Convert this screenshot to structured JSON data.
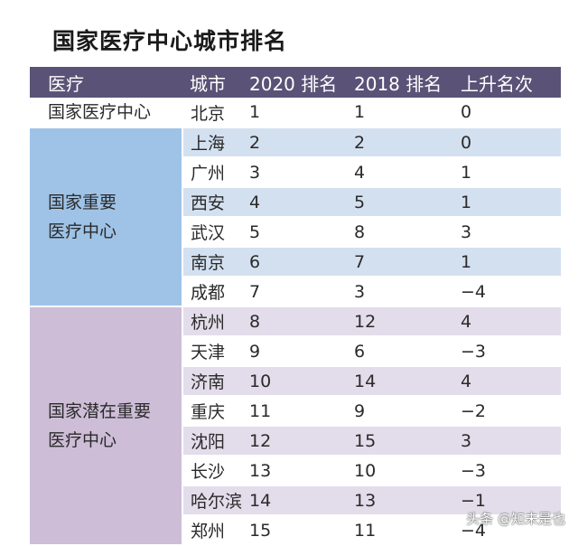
{
  "title": "国家医疗中心城市排名",
  "headers": [
    "医疗",
    "城市",
    "2020 排名",
    "2018 排名",
    "上升名次"
  ],
  "groups": [
    {
      "label_line1": "国家医疗中心",
      "label_line2": ""
    },
    {
      "label_line1": "国家重要",
      "label_line2": "医疗中心"
    },
    {
      "label_line1": "国家潜在重要",
      "label_line2": "医疗中心"
    }
  ],
  "rows": [
    {
      "city": "北京",
      "r2020": "1",
      "r2018": "1",
      "change": "0"
    },
    {
      "city": "上海",
      "r2020": "2",
      "r2018": "2",
      "change": "0"
    },
    {
      "city": "广州",
      "r2020": "3",
      "r2018": "4",
      "change": "1"
    },
    {
      "city": "西安",
      "r2020": "4",
      "r2018": "5",
      "change": "1"
    },
    {
      "city": "武汉",
      "r2020": "5",
      "r2018": "8",
      "change": "3"
    },
    {
      "city": "南京",
      "r2020": "6",
      "r2018": "7",
      "change": "1"
    },
    {
      "city": "成都",
      "r2020": "7",
      "r2018": "3",
      "change": "−4"
    },
    {
      "city": "杭州",
      "r2020": "8",
      "r2018": "12",
      "change": "4"
    },
    {
      "city": "天津",
      "r2020": "9",
      "r2018": "6",
      "change": "−3"
    },
    {
      "city": "济南",
      "r2020": "10",
      "r2018": "14",
      "change": "4"
    },
    {
      "city": "重庆",
      "r2020": "11",
      "r2018": "9",
      "change": "−2"
    },
    {
      "city": "沈阳",
      "r2020": "12",
      "r2018": "15",
      "change": "3"
    },
    {
      "city": "长沙",
      "r2020": "13",
      "r2018": "10",
      "change": "−3"
    },
    {
      "city": "哈尔滨",
      "r2020": "14",
      "r2018": "13",
      "change": "−1"
    },
    {
      "city": "郑州",
      "r2020": "15",
      "r2018": "11",
      "change": "−4"
    }
  ],
  "watermark": "头条 @知未是也",
  "colors": {
    "header_bg": "#5b5277",
    "group2_bg": "#9fc3e6",
    "group3_bg": "#cdbdd7",
    "row_blue": "#d3e0f0",
    "row_lavender": "#e3dcea"
  }
}
